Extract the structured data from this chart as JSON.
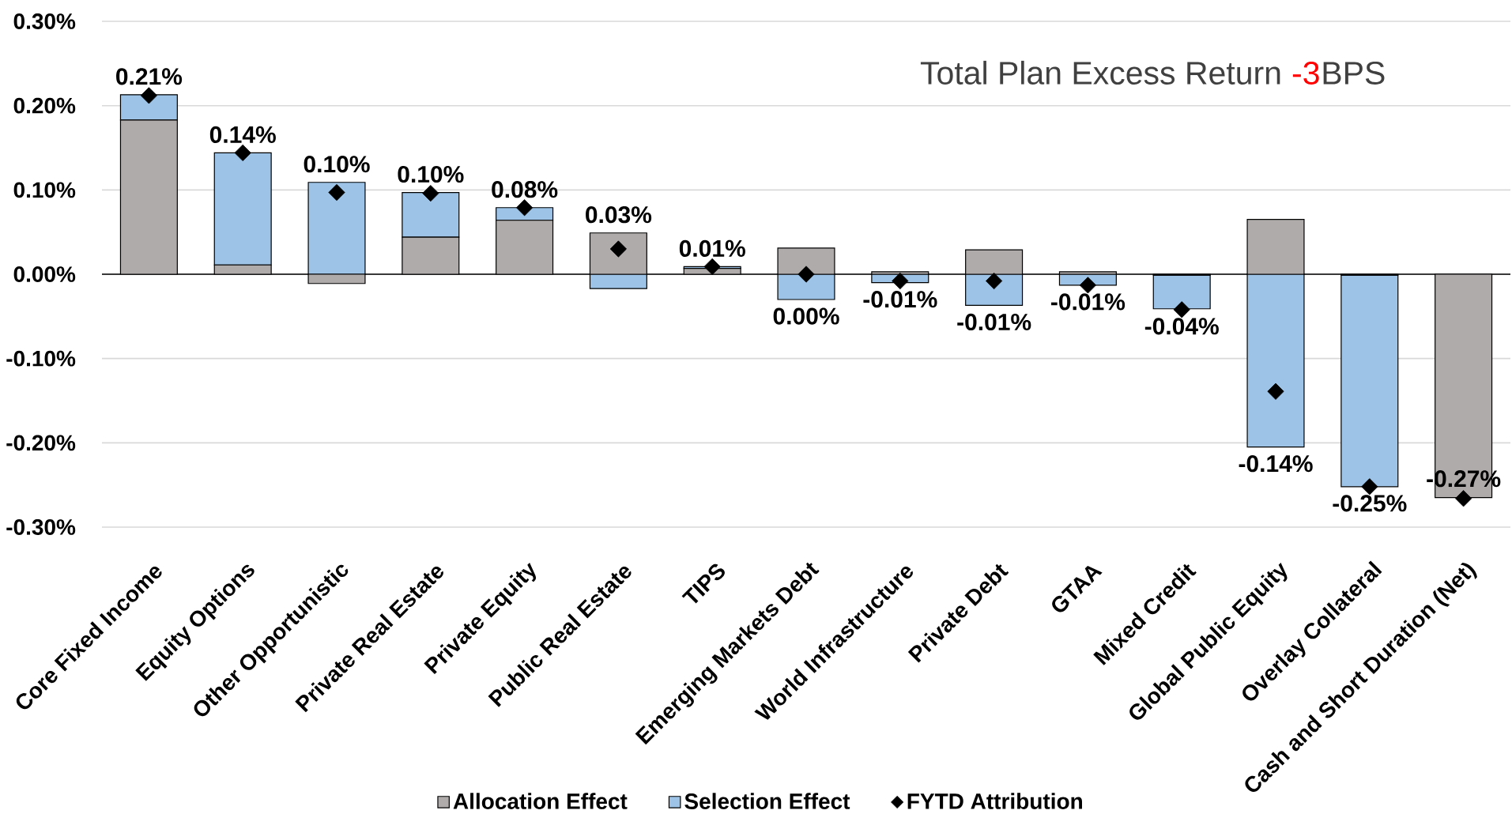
{
  "chart_data": {
    "type": "bar",
    "stacked": true,
    "title": "Total Plan Excess Return",
    "annotations": [
      "-3",
      "BPS"
    ],
    "categories": [
      "Core Fixed Income",
      "Equity Options",
      "Other Opportunistic",
      "Private Real Estate",
      "Private Equity",
      "Public Real Estate",
      "TIPS",
      "Emerging Markets Debt",
      "World Infrastructure",
      "Private Debt",
      "GTAA",
      "Mixed Credit",
      "Global Public Equity",
      "Overlay Collateral",
      "Cash and Short Duration (Net)"
    ],
    "series": [
      {
        "name": "Allocation Effect",
        "color": "#afabab",
        "values": [
          0.183,
          0.011,
          -0.011,
          0.044,
          0.064,
          0.049,
          0.007,
          0.031,
          0.003,
          0.029,
          0.003,
          -0.001,
          0.065,
          -0.001,
          -0.265
        ]
      },
      {
        "name": "Selection Effect",
        "color": "#9dc3e6",
        "values": [
          0.03,
          0.133,
          0.109,
          0.053,
          0.015,
          -0.017,
          0.002,
          -0.03,
          -0.01,
          -0.037,
          -0.013,
          -0.04,
          -0.205,
          -0.251,
          0.0
        ]
      },
      {
        "name": "FYTD Attribution",
        "type": "scatter",
        "color": "#000000",
        "marker": "diamond",
        "values": [
          0.212,
          0.144,
          0.097,
          0.096,
          0.079,
          0.03,
          0.009,
          0.0,
          -0.008,
          -0.008,
          -0.013,
          -0.042,
          -0.139,
          -0.252,
          -0.266
        ],
        "value_labels": [
          "0.21%",
          "0.14%",
          "0.10%",
          "0.10%",
          "0.08%",
          "0.03%",
          "0.01%",
          "0.00%",
          "-0.01%",
          "-0.01%",
          "-0.01%",
          "-0.04%",
          "-0.14%",
          "-0.25%",
          "-0.27%"
        ]
      }
    ],
    "ylim": [
      -0.3,
      0.3
    ],
    "yticks": [
      {
        "value": -0.3,
        "label": "-0.30%"
      },
      {
        "value": -0.2,
        "label": "-0.20%"
      },
      {
        "value": -0.1,
        "label": "-0.10%"
      },
      {
        "value": 0,
        "label": "0.00%"
      },
      {
        "value": 0.1,
        "label": "0.10%"
      },
      {
        "value": 0.2,
        "label": "0.20%"
      },
      {
        "value": 0.3,
        "label": "0.30%"
      }
    ],
    "grid": "y",
    "legend": "bottom"
  }
}
